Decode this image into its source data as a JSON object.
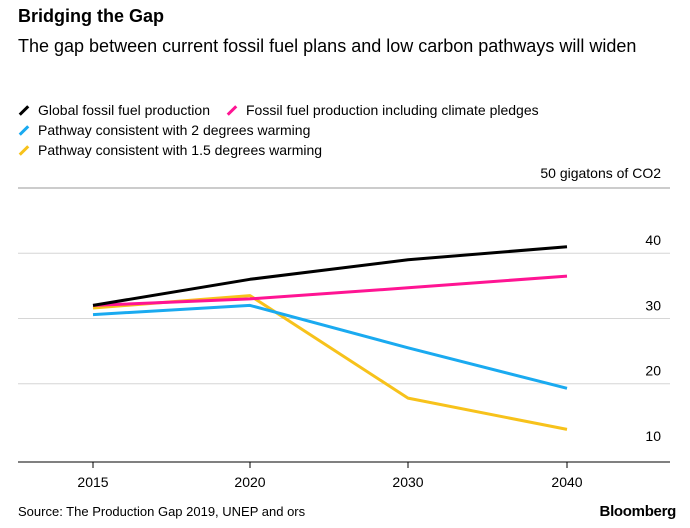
{
  "title": "Bridging the Gap",
  "subtitle": "The gap between current fossil fuel plans and low carbon pathways will widen",
  "source": "Source: The Production Gap 2019, UNEP and ors",
  "brand": "Bloomberg",
  "chart_data": {
    "type": "line",
    "unit_label": "50 gigatons of CO2",
    "x": [
      2015,
      2020,
      2030,
      2040
    ],
    "x_ticks": [
      "2015",
      "2020",
      "2030",
      "2040"
    ],
    "y_ticks": [
      10,
      20,
      30,
      40
    ],
    "y_tick_labels": [
      "10",
      "20",
      "30",
      "40"
    ],
    "ylim": [
      8,
      50
    ],
    "grid": true,
    "series": [
      {
        "name": "Global fossil fuel production",
        "color": "#000000",
        "values": [
          32,
          36,
          39,
          41
        ]
      },
      {
        "name": "Fossil fuel production including climate pledges",
        "color": "#ff1493",
        "values": [
          32,
          33,
          34.7,
          36.5
        ]
      },
      {
        "name": "Pathway consistent with 2 degrees warming",
        "color": "#1aaaf0",
        "values": [
          30.6,
          32,
          25.5,
          19.3
        ]
      },
      {
        "name": "Pathway consistent with 1.5 degrees warming",
        "color": "#f7c21b",
        "values": [
          31.6,
          33.5,
          17.8,
          13
        ]
      }
    ]
  }
}
